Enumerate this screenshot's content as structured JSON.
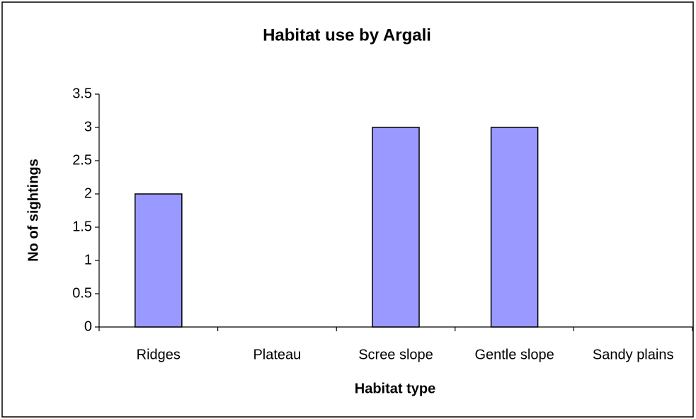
{
  "chart_data": {
    "type": "bar",
    "title": "Habitat use by Argali",
    "x_label": "Habitat type",
    "y_label": "No of sightings",
    "categories": [
      "Ridges",
      "Plateau",
      "Scree slope",
      "Gentle slope",
      "Sandy plains"
    ],
    "values": [
      2,
      0,
      3,
      3,
      0
    ],
    "color": "#9999ff",
    "ylim": [
      0,
      3.5
    ],
    "yticks": [
      0,
      0.5,
      1,
      1.5,
      2,
      2.5,
      3,
      3.5
    ],
    "grid": false
  }
}
